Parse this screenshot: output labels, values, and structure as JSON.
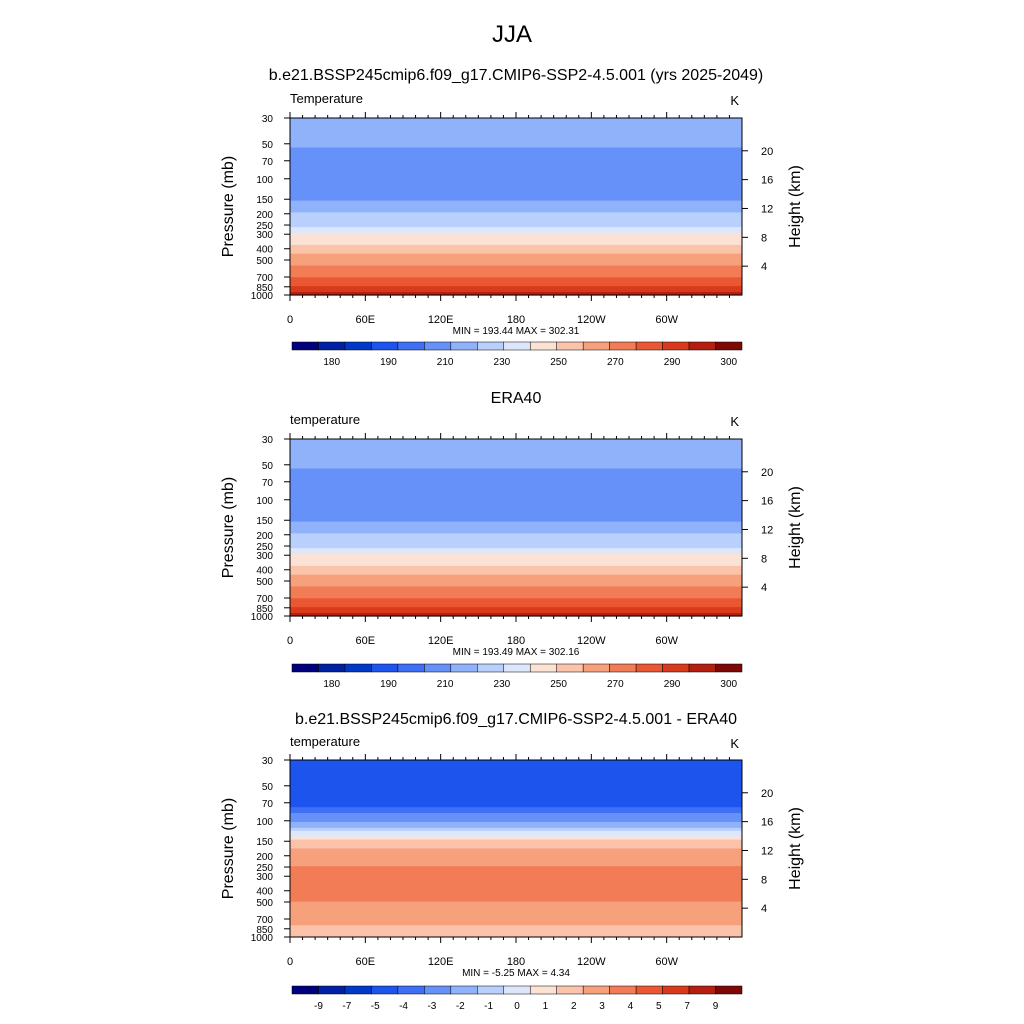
{
  "figure": {
    "title": "JJA"
  },
  "chart_data": [
    {
      "type": "heatmap",
      "title": "b.e21.BSSP245cmip6.f09_g17.CMIP6-SSP2-4.5.001 (yrs 2025-2049)",
      "left_label": "Temperature",
      "units": "K",
      "ylabel": "Pressure (mb)",
      "ylabel_right": "Height (km)",
      "x_ticks": [
        "0",
        "60E",
        "120E",
        "180",
        "120W",
        "60W"
      ],
      "y_ticks": [
        "30",
        "50",
        "70",
        "100",
        "150",
        "200",
        "250",
        "300",
        "400",
        "500",
        "700",
        "850",
        "1000"
      ],
      "y_ticks_right": [
        "20",
        "16",
        "12",
        "8",
        "4"
      ],
      "stats": "MIN = 193.44  MAX = 302.31",
      "colorbar_labels": [
        "180",
        "190",
        "210",
        "230",
        "250",
        "270",
        "290",
        "300"
      ],
      "profile": [
        {
          "p": 30,
          "v": 215
        },
        {
          "p": 50,
          "v": 212
        },
        {
          "p": 70,
          "v": 205
        },
        {
          "p": 100,
          "v": 202
        },
        {
          "p": 150,
          "v": 210
        },
        {
          "p": 200,
          "v": 220
        },
        {
          "p": 250,
          "v": 229
        },
        {
          "p": 300,
          "v": 240
        },
        {
          "p": 400,
          "v": 255
        },
        {
          "p": 500,
          "v": 266
        },
        {
          "p": 700,
          "v": 280
        },
        {
          "p": 850,
          "v": 290
        },
        {
          "p": 1000,
          "v": 298
        }
      ]
    },
    {
      "type": "heatmap",
      "title": "ERA40",
      "left_label": "temperature",
      "units": "K",
      "ylabel": "Pressure (mb)",
      "ylabel_right": "Height (km)",
      "x_ticks": [
        "0",
        "60E",
        "120E",
        "180",
        "120W",
        "60W"
      ],
      "y_ticks": [
        "30",
        "50",
        "70",
        "100",
        "150",
        "200",
        "250",
        "300",
        "400",
        "500",
        "700",
        "850",
        "1000"
      ],
      "y_ticks_right": [
        "20",
        "16",
        "12",
        "8",
        "4"
      ],
      "stats": "MIN = 193.49  MAX = 302.16",
      "colorbar_labels": [
        "180",
        "190",
        "210",
        "230",
        "250",
        "270",
        "290",
        "300"
      ],
      "profile": [
        {
          "p": 30,
          "v": 215
        },
        {
          "p": 50,
          "v": 212
        },
        {
          "p": 70,
          "v": 205
        },
        {
          "p": 100,
          "v": 202
        },
        {
          "p": 150,
          "v": 210
        },
        {
          "p": 200,
          "v": 220
        },
        {
          "p": 250,
          "v": 229
        },
        {
          "p": 300,
          "v": 240
        },
        {
          "p": 400,
          "v": 255
        },
        {
          "p": 500,
          "v": 266
        },
        {
          "p": 700,
          "v": 280
        },
        {
          "p": 850,
          "v": 290
        },
        {
          "p": 1000,
          "v": 298
        }
      ]
    },
    {
      "type": "heatmap",
      "title": "b.e21.BSSP245cmip6.f09_g17.CMIP6-SSP2-4.5.001 - ERA40",
      "left_label": "temperature",
      "units": "K",
      "ylabel": "Pressure (mb)",
      "ylabel_right": "Height (km)",
      "x_ticks": [
        "0",
        "60E",
        "120E",
        "180",
        "120W",
        "60W"
      ],
      "y_ticks": [
        "30",
        "50",
        "70",
        "100",
        "150",
        "200",
        "250",
        "300",
        "400",
        "500",
        "700",
        "850",
        "1000"
      ],
      "y_ticks_right": [
        "20",
        "16",
        "12",
        "8",
        "4"
      ],
      "stats": "MIN = -5.25  MAX =  4.34",
      "colorbar_labels": [
        "-9",
        "-7",
        "-5",
        "-4",
        "-3",
        "-2",
        "-1",
        "0",
        "1",
        "2",
        "3",
        "4",
        "5",
        "7",
        "9"
      ],
      "profile": [
        {
          "p": 30,
          "v": -4.5
        },
        {
          "p": 50,
          "v": -4.5
        },
        {
          "p": 70,
          "v": -4.8
        },
        {
          "p": 100,
          "v": -2.0
        },
        {
          "p": 150,
          "v": 1.5
        },
        {
          "p": 200,
          "v": 2.5
        },
        {
          "p": 250,
          "v": 3.0
        },
        {
          "p": 300,
          "v": 3.5
        },
        {
          "p": 400,
          "v": 3.5
        },
        {
          "p": 500,
          "v": 3.0
        },
        {
          "p": 700,
          "v": 2.5
        },
        {
          "p": 850,
          "v": 1.5
        },
        {
          "p": 1000,
          "v": 2.0
        }
      ]
    }
  ],
  "colors": {
    "colorbar": [
      "#00007f",
      "#0021a4",
      "#0038c8",
      "#1e54ee",
      "#3e6ff5",
      "#6591f8",
      "#90b2fb",
      "#b9cffc",
      "#dde7fb",
      "#fbe2d4",
      "#fac3aa",
      "#f6a07c",
      "#f17c56",
      "#eb5733",
      "#d93a1b",
      "#b41f10",
      "#7d0805"
    ]
  }
}
